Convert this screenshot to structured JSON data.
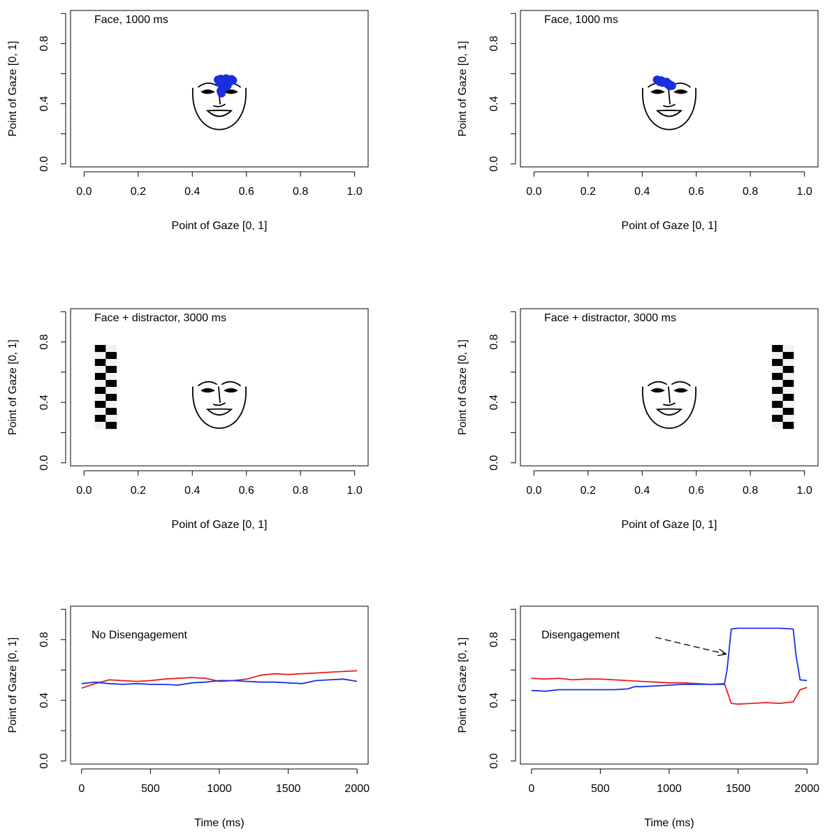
{
  "chart_data": [
    {
      "id": "top-left",
      "type": "scatter",
      "annotation": "Face, 1000 ms",
      "xlabel": "Point of Gaze [0, 1]",
      "ylabel": "Point of Gaze [0, 1]",
      "xlim": [
        -0.05,
        1.05
      ],
      "ylim": [
        -0.02,
        1.02
      ],
      "x_ticks": [
        0.0,
        0.2,
        0.4,
        0.6,
        0.8,
        1.0
      ],
      "x_tick_labels": [
        "0.0",
        "0.2",
        "0.4",
        "0.6",
        "0.8",
        "1.0"
      ],
      "y_ticks": [
        0.0,
        0.4,
        0.8
      ],
      "y_tick_labels": [
        "0.0",
        "0.4",
        "0.8"
      ],
      "face": {
        "cx": 0.5,
        "cy": 0.4
      },
      "distractor": null,
      "gaze_color": "#1a2fe0",
      "gaze_points": [
        [
          0.495,
          0.56
        ],
        [
          0.505,
          0.565
        ],
        [
          0.515,
          0.562
        ],
        [
          0.525,
          0.568
        ],
        [
          0.535,
          0.56
        ],
        [
          0.545,
          0.563
        ],
        [
          0.55,
          0.555
        ],
        [
          0.54,
          0.548
        ],
        [
          0.53,
          0.545
        ],
        [
          0.52,
          0.55
        ],
        [
          0.51,
          0.548
        ],
        [
          0.5,
          0.545
        ],
        [
          0.505,
          0.535
        ],
        [
          0.515,
          0.53
        ],
        [
          0.525,
          0.535
        ],
        [
          0.52,
          0.52
        ],
        [
          0.51,
          0.515
        ],
        [
          0.515,
          0.505
        ],
        [
          0.51,
          0.495
        ],
        [
          0.505,
          0.485
        ],
        [
          0.508,
          0.47
        ],
        [
          0.52,
          0.51
        ],
        [
          0.53,
          0.52
        ],
        [
          0.498,
          0.55
        ],
        [
          0.545,
          0.552
        ]
      ]
    },
    {
      "id": "top-right",
      "type": "scatter",
      "annotation": "Face, 1000 ms",
      "xlabel": "Point of Gaze [0, 1]",
      "ylabel": "Point of Gaze [0, 1]",
      "xlim": [
        -0.05,
        1.05
      ],
      "ylim": [
        -0.02,
        1.02
      ],
      "x_ticks": [
        0.0,
        0.2,
        0.4,
        0.6,
        0.8,
        1.0
      ],
      "x_tick_labels": [
        "0.0",
        "0.2",
        "0.4",
        "0.6",
        "0.8",
        "1.0"
      ],
      "y_ticks": [
        0.0,
        0.4,
        0.8
      ],
      "y_tick_labels": [
        "0.0",
        "0.4",
        "0.8"
      ],
      "face": {
        "cx": 0.5,
        "cy": 0.4
      },
      "distractor": null,
      "gaze_color": "#1a2fe0",
      "gaze_points": [
        [
          0.455,
          0.56
        ],
        [
          0.46,
          0.555
        ],
        [
          0.47,
          0.555
        ],
        [
          0.475,
          0.548
        ],
        [
          0.48,
          0.545
        ],
        [
          0.487,
          0.54
        ],
        [
          0.493,
          0.535
        ],
        [
          0.5,
          0.53
        ],
        [
          0.505,
          0.525
        ],
        [
          0.51,
          0.52
        ],
        [
          0.49,
          0.545
        ],
        [
          0.47,
          0.548
        ],
        [
          0.465,
          0.545
        ],
        [
          0.475,
          0.54
        ],
        [
          0.495,
          0.528
        ],
        [
          0.502,
          0.518
        ]
      ]
    },
    {
      "id": "middle-left",
      "type": "scatter",
      "annotation": "Face + distractor, 3000 ms",
      "xlabel": "Point of Gaze [0, 1]",
      "ylabel": "Point of Gaze [0, 1]",
      "xlim": [
        -0.05,
        1.05
      ],
      "ylim": [
        -0.02,
        1.02
      ],
      "x_ticks": [
        0.0,
        0.2,
        0.4,
        0.6,
        0.8,
        1.0
      ],
      "x_tick_labels": [
        "0.0",
        "0.2",
        "0.4",
        "0.6",
        "0.8",
        "1.0"
      ],
      "y_ticks": [
        0.0,
        0.4,
        0.8
      ],
      "y_tick_labels": [
        "0.0",
        "0.4",
        "0.8"
      ],
      "face": {
        "cx": 0.5,
        "cy": 0.4
      },
      "distractor": {
        "x0": 0.04,
        "x1": 0.12,
        "y0": 0.225,
        "y1": 0.78
      },
      "gaze_color": "#1a2fe0",
      "gaze_points": []
    },
    {
      "id": "middle-right",
      "type": "scatter",
      "annotation": "Face + distractor, 3000 ms",
      "xlabel": "Point of Gaze [0, 1]",
      "ylabel": "Point of Gaze [0, 1]",
      "xlim": [
        -0.05,
        1.05
      ],
      "ylim": [
        -0.02,
        1.02
      ],
      "x_ticks": [
        0.0,
        0.2,
        0.4,
        0.6,
        0.8,
        1.0
      ],
      "x_tick_labels": [
        "0.0",
        "0.2",
        "0.4",
        "0.6",
        "0.8",
        "1.0"
      ],
      "y_ticks": [
        0.0,
        0.4,
        0.8
      ],
      "y_tick_labels": [
        "0.0",
        "0.4",
        "0.8"
      ],
      "face": {
        "cx": 0.5,
        "cy": 0.4
      },
      "distractor": {
        "x0": 0.88,
        "x1": 0.96,
        "y0": 0.225,
        "y1": 0.78
      },
      "gaze_color": "#1a2fe0",
      "gaze_points": []
    },
    {
      "id": "bottom-left",
      "type": "line",
      "annotation": "No Disengagement",
      "xlabel": "Time (ms)",
      "ylabel": "Point of Gaze [0, 1]",
      "xlim": [
        -80,
        2080
      ],
      "ylim": [
        -0.02,
        1.02
      ],
      "x_ticks": [
        0,
        500,
        1000,
        1500,
        2000
      ],
      "x_tick_labels": [
        "0",
        "500",
        "1000",
        "1500",
        "2000"
      ],
      "y_ticks": [
        0.0,
        0.4,
        0.8
      ],
      "y_tick_labels": [
        "0.0",
        "0.4",
        "0.8"
      ],
      "series": [
        {
          "color": "#e81c1c",
          "x": [
            0,
            100,
            200,
            300,
            400,
            500,
            600,
            700,
            800,
            900,
            1000,
            1100,
            1200,
            1300,
            1400,
            1500,
            1600,
            1700,
            1800,
            1900,
            2000
          ],
          "y": [
            0.48,
            0.51,
            0.535,
            0.53,
            0.525,
            0.53,
            0.54,
            0.545,
            0.55,
            0.545,
            0.525,
            0.53,
            0.54,
            0.565,
            0.575,
            0.57,
            0.575,
            0.58,
            0.585,
            0.59,
            0.595
          ]
        },
        {
          "color": "#1a2fe0",
          "x": [
            0,
            100,
            200,
            300,
            400,
            500,
            600,
            700,
            800,
            900,
            1000,
            1100,
            1200,
            1300,
            1400,
            1500,
            1600,
            1700,
            1800,
            1900,
            2000
          ],
          "y": [
            0.51,
            0.52,
            0.51,
            0.505,
            0.51,
            0.505,
            0.505,
            0.5,
            0.515,
            0.52,
            0.53,
            0.53,
            0.525,
            0.52,
            0.52,
            0.515,
            0.51,
            0.53,
            0.535,
            0.54,
            0.525
          ]
        }
      ],
      "arrow": null
    },
    {
      "id": "bottom-right",
      "type": "line",
      "annotation": "Disengagement",
      "xlabel": "Time (ms)",
      "ylabel": "Point of Gaze [0, 1]",
      "xlim": [
        -80,
        2080
      ],
      "ylim": [
        -0.02,
        1.02
      ],
      "x_ticks": [
        0,
        500,
        1000,
        1500,
        2000
      ],
      "x_tick_labels": [
        "0",
        "500",
        "1000",
        "1500",
        "2000"
      ],
      "y_ticks": [
        0.0,
        0.4,
        0.8
      ],
      "y_tick_labels": [
        "0.0",
        "0.4",
        "0.8"
      ],
      "series": [
        {
          "color": "#e81c1c",
          "x": [
            0,
            100,
            200,
            300,
            400,
            500,
            600,
            700,
            800,
            900,
            1000,
            1100,
            1200,
            1300,
            1400,
            1420,
            1450,
            1500,
            1600,
            1700,
            1800,
            1900,
            1950,
            2000
          ],
          "y": [
            0.545,
            0.54,
            0.545,
            0.535,
            0.54,
            0.54,
            0.535,
            0.53,
            0.525,
            0.52,
            0.515,
            0.515,
            0.51,
            0.505,
            0.51,
            0.46,
            0.38,
            0.375,
            0.38,
            0.385,
            0.38,
            0.39,
            0.47,
            0.485
          ]
        },
        {
          "color": "#1a2fe0",
          "x": [
            0,
            100,
            200,
            300,
            400,
            500,
            600,
            700,
            750,
            800,
            900,
            1000,
            1100,
            1200,
            1300,
            1400,
            1420,
            1450,
            1500,
            1600,
            1700,
            1800,
            1900,
            1920,
            1950,
            2000
          ],
          "y": [
            0.465,
            0.46,
            0.47,
            0.47,
            0.47,
            0.47,
            0.47,
            0.475,
            0.49,
            0.49,
            0.495,
            0.5,
            0.505,
            0.505,
            0.505,
            0.505,
            0.6,
            0.87,
            0.875,
            0.875,
            0.875,
            0.875,
            0.87,
            0.7,
            0.535,
            0.53
          ]
        }
      ],
      "arrow": {
        "from": [
          900,
          0.815
        ],
        "to": [
          1410,
          0.705
        ]
      }
    }
  ]
}
